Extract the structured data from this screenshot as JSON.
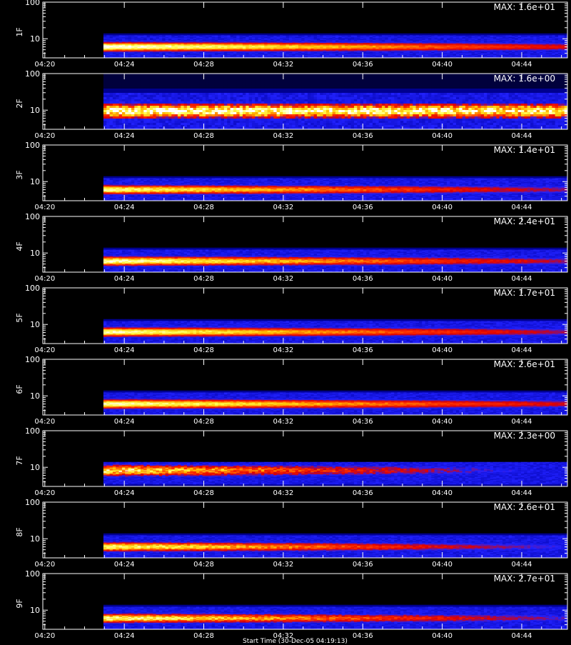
{
  "chart_data": {
    "type": "heatmap",
    "layout": "stacked-panels",
    "shared_x": {
      "ticks": [
        "04:20",
        "04:24",
        "04:28",
        "04:32",
        "04:36",
        "04:40",
        "04:44"
      ],
      "tick_minutes": [
        260,
        264,
        268,
        272,
        276,
        280,
        284
      ],
      "range_minutes": [
        259.9,
        286.3
      ],
      "data_start_minute": 262.95
    },
    "shared_y": {
      "scale": "log",
      "tick_labels": [
        "10",
        "100"
      ],
      "tick_values": [
        10,
        100
      ],
      "range": [
        3,
        100
      ]
    },
    "colorscale": [
      "#000000",
      "#0000aa",
      "#2222ff",
      "#dd0000",
      "#ff3300",
      "#ffbb00",
      "#ffff55",
      "#ffffff"
    ],
    "panels": [
      {
        "label": "1F",
        "max_text": "MAX: 1.6e+01",
        "band_center": 6.0,
        "band_width": 0.13,
        "peak_intensity": 1.0,
        "decay": 0.55,
        "noise": 0.15
      },
      {
        "label": "2F",
        "max_text": "MAX: 1.6e+00",
        "band_center": 9.5,
        "band_width": 0.2,
        "peak_intensity": 0.95,
        "decay": 0.1,
        "noise": 0.45,
        "haze": true
      },
      {
        "label": "3F",
        "max_text": "MAX: 1.4e+01",
        "band_center": 6.0,
        "band_width": 0.13,
        "peak_intensity": 0.9,
        "decay": 0.6,
        "noise": 0.2
      },
      {
        "label": "4F",
        "max_text": "MAX: 2.4e+01",
        "band_center": 6.0,
        "band_width": 0.13,
        "peak_intensity": 0.95,
        "decay": 0.6,
        "noise": 0.2
      },
      {
        "label": "5F",
        "max_text": "MAX: 1.7e+01",
        "band_center": 6.2,
        "band_width": 0.13,
        "peak_intensity": 0.95,
        "decay": 0.6,
        "noise": 0.15
      },
      {
        "label": "6F",
        "max_text": "MAX: 2.6e+01",
        "band_center": 6.0,
        "band_width": 0.13,
        "peak_intensity": 0.95,
        "decay": 0.55,
        "noise": 0.15
      },
      {
        "label": "7F",
        "max_text": "MAX: 2.3e+00",
        "band_center": 8.2,
        "band_width": 0.16,
        "peak_intensity": 0.85,
        "decay": 0.8,
        "noise": 0.45
      },
      {
        "label": "8F",
        "max_text": "MAX: 2.6e+01",
        "band_center": 6.0,
        "band_width": 0.13,
        "peak_intensity": 0.9,
        "decay": 0.7,
        "noise": 0.25
      },
      {
        "label": "9F",
        "max_text": "MAX: 2.7e+01",
        "band_center": 6.0,
        "band_width": 0.13,
        "peak_intensity": 0.9,
        "decay": 0.65,
        "noise": 0.3
      }
    ]
  },
  "footer": {
    "xlabel": "Start Time (30-Dec-05 04:19:13)"
  }
}
